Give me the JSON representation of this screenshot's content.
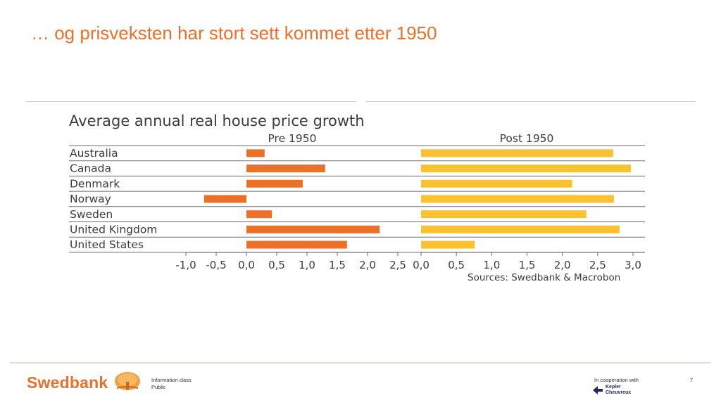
{
  "slide": {
    "title": "… og prisveksten har stort sett kommet etter 1950"
  },
  "chart_data": {
    "type": "bar",
    "orientation": "horizontal",
    "title": "Average annual real house price growth",
    "source": "Sources: Swedbank & Macrobon",
    "categories": [
      "Australia",
      "Canada",
      "Denmark",
      "Norway",
      "Sweden",
      "United Kingdom",
      "United States"
    ],
    "panels": [
      {
        "name": "Pre 1950",
        "color": "#ec7027",
        "xlim": [
          -1.0,
          2.5
        ],
        "ticks": [
          "-1,0",
          "-0,5",
          "0,0",
          "0,5",
          "1,0",
          "1,5",
          "2,0",
          "2,5"
        ],
        "tick_values": [
          -1.0,
          -0.5,
          0.0,
          0.5,
          1.0,
          1.5,
          2.0,
          2.5
        ],
        "values": [
          0.3,
          1.3,
          0.93,
          -0.7,
          0.42,
          2.2,
          1.66
        ]
      },
      {
        "name": "Post 1950",
        "color": "#fbc12f",
        "xlim": [
          0.0,
          3.0
        ],
        "ticks": [
          "0,0",
          "0,5",
          "1,0",
          "1,5",
          "2,0",
          "2,5",
          "3,0"
        ],
        "tick_values": [
          0.0,
          0.5,
          1.0,
          1.5,
          2.0,
          2.5,
          3.0
        ],
        "values": [
          2.72,
          2.97,
          2.14,
          2.73,
          2.34,
          2.81,
          0.76
        ]
      }
    ]
  },
  "footer": {
    "brand": "Swedbank",
    "info_class_label": "Information class",
    "info_class_value": "Public",
    "cooperation": "In cooperation with",
    "partner_line1": "Kepler",
    "partner_line2": "Cheuvreux",
    "page_number": "7"
  }
}
